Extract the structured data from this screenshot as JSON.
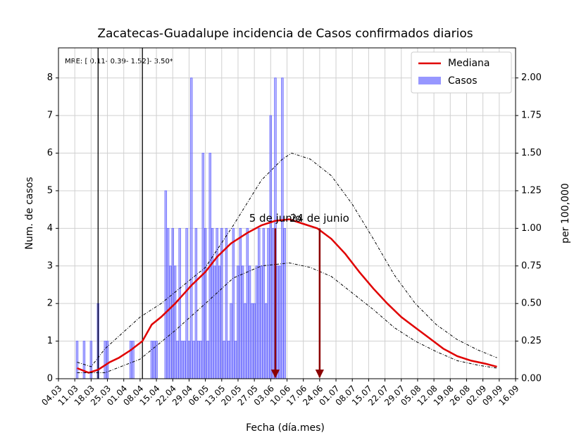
{
  "chart_data": {
    "type": "bar_line",
    "title": "Zacatecas-Guadalupe incidencia de Casos confirmados diarios",
    "xlabel": "Fecha (día.mes)",
    "ylabel": "Num. de casos",
    "y2label": "per 100,000",
    "note": "MRE: [ 0.11- 0.39- 1.52]- 3.50*",
    "grid": true,
    "legend": "upper right",
    "xlim": [
      0,
      196
    ],
    "ylim": [
      0,
      8.8
    ],
    "y2lim": [
      0,
      2.2
    ],
    "xticks": [
      {
        "value": 0,
        "label": "04.03"
      },
      {
        "value": 7,
        "label": "11.03"
      },
      {
        "value": 14,
        "label": "18.03"
      },
      {
        "value": 21,
        "label": "25.03"
      },
      {
        "value": 28,
        "label": "01.04"
      },
      {
        "value": 35,
        "label": "08.04"
      },
      {
        "value": 42,
        "label": "15.04"
      },
      {
        "value": 49,
        "label": "22.04"
      },
      {
        "value": 56,
        "label": "29.04"
      },
      {
        "value": 63,
        "label": "06.05"
      },
      {
        "value": 70,
        "label": "13.05"
      },
      {
        "value": 77,
        "label": "20.05"
      },
      {
        "value": 84,
        "label": "27.05"
      },
      {
        "value": 91,
        "label": "03.06"
      },
      {
        "value": 98,
        "label": "10.06"
      },
      {
        "value": 105,
        "label": "17.06"
      },
      {
        "value": 112,
        "label": "24.06"
      },
      {
        "value": 119,
        "label": "01.07"
      },
      {
        "value": 126,
        "label": "08.07"
      },
      {
        "value": 133,
        "label": "15.07"
      },
      {
        "value": 140,
        "label": "22.07"
      },
      {
        "value": 147,
        "label": "29.07"
      },
      {
        "value": 154,
        "label": "05.08"
      },
      {
        "value": 161,
        "label": "12.08"
      },
      {
        "value": 168,
        "label": "19.08"
      },
      {
        "value": 175,
        "label": "26.08"
      },
      {
        "value": 182,
        "label": "02.09"
      },
      {
        "value": 189,
        "label": "09.09"
      },
      {
        "value": 196,
        "label": "16.09"
      }
    ],
    "yticks": [
      0,
      1,
      2,
      3,
      4,
      5,
      6,
      7,
      8
    ],
    "y2ticks": [
      {
        "value": 0,
        "label": "0.00"
      },
      {
        "value": 0.25,
        "label": "0.25"
      },
      {
        "value": 0.5,
        "label": "0.50"
      },
      {
        "value": 0.75,
        "label": "0.75"
      },
      {
        "value": 1,
        "label": "1.00"
      },
      {
        "value": 1.25,
        "label": "1.25"
      },
      {
        "value": 1.5,
        "label": "1.50"
      },
      {
        "value": 1.75,
        "label": "1.75"
      },
      {
        "value": 2,
        "label": "2.00"
      }
    ],
    "bars": {
      "name": "Casos",
      "color": "#6b6bff",
      "x": [
        8,
        11,
        14,
        17,
        20,
        21,
        31,
        32,
        40,
        41,
        42,
        46,
        47,
        48,
        49,
        50,
        51,
        52,
        53,
        54,
        55,
        56,
        57,
        58,
        59,
        60,
        61,
        62,
        63,
        64,
        65,
        66,
        67,
        68,
        69,
        70,
        71,
        72,
        73,
        74,
        75,
        76,
        77,
        78,
        79,
        80,
        81,
        82,
        83,
        84,
        85,
        86,
        87,
        88,
        89,
        90,
        91,
        92,
        93,
        94,
        95,
        96,
        97
      ],
      "values": [
        1,
        1,
        1,
        2,
        1,
        1,
        1,
        1,
        1,
        1,
        1,
        5,
        4,
        3,
        4,
        3,
        1,
        4,
        1,
        1,
        4,
        1,
        8,
        1,
        4,
        1,
        1,
        6,
        4,
        1,
        6,
        4,
        3,
        4,
        3,
        4,
        1,
        4,
        1,
        2,
        4,
        1,
        3,
        4,
        3,
        2,
        4,
        3,
        2,
        2,
        3,
        4,
        3,
        4,
        2,
        4,
        7,
        4,
        8,
        3,
        3,
        8,
        4
      ]
    },
    "lines": [
      {
        "name": "Mediana",
        "color": "#e00000",
        "axis": "y2",
        "linestyle": "solid",
        "x": [
          8,
          13,
          17,
          22,
          26,
          31,
          36,
          40,
          44,
          50,
          57,
          63,
          68,
          74,
          81,
          87,
          93,
          99,
          105,
          111,
          117,
          123,
          129,
          135,
          141,
          147,
          153,
          159,
          165,
          171,
          177,
          183,
          188
        ],
        "values": [
          0.07,
          0.04,
          0.06,
          0.11,
          0.14,
          0.19,
          0.25,
          0.36,
          0.41,
          0.5,
          0.62,
          0.71,
          0.81,
          0.9,
          0.97,
          1.02,
          1.05,
          1.06,
          1.03,
          1.0,
          0.93,
          0.83,
          0.71,
          0.6,
          0.5,
          0.41,
          0.34,
          0.27,
          0.2,
          0.15,
          0.12,
          0.1,
          0.08
        ]
      },
      {
        "color": "#000000",
        "axis": "y2",
        "linestyle": "dashed",
        "x": [
          8,
          14,
          20,
          35,
          44,
          63,
          75,
          87,
          96,
          100,
          108,
          117,
          126,
          135,
          144,
          153,
          162,
          171,
          180,
          188
        ],
        "values": [
          0.11,
          0.08,
          0.2,
          0.41,
          0.5,
          0.74,
          1.02,
          1.32,
          1.46,
          1.5,
          1.46,
          1.35,
          1.16,
          0.93,
          0.69,
          0.5,
          0.36,
          0.26,
          0.19,
          0.14
        ]
      },
      {
        "color": "#000000",
        "axis": "y2",
        "linestyle": "dashed",
        "x": [
          8,
          20,
          35,
          50,
          63,
          75,
          87,
          99,
          108,
          117,
          126,
          135,
          144,
          153,
          162,
          171,
          180,
          188
        ],
        "values": [
          0.04,
          0.04,
          0.13,
          0.32,
          0.5,
          0.67,
          0.75,
          0.77,
          0.74,
          0.68,
          0.57,
          0.46,
          0.34,
          0.25,
          0.18,
          0.12,
          0.09,
          0.07
        ]
      }
    ],
    "vlines": [
      17,
      36
    ],
    "annotations": [
      {
        "text": "5 de junio",
        "x": 93,
        "y": 1.0,
        "color": "#8b0000"
      },
      {
        "text": "24 de junio",
        "x": 112,
        "y": 1.0,
        "color": "#8b0000"
      }
    ]
  }
}
